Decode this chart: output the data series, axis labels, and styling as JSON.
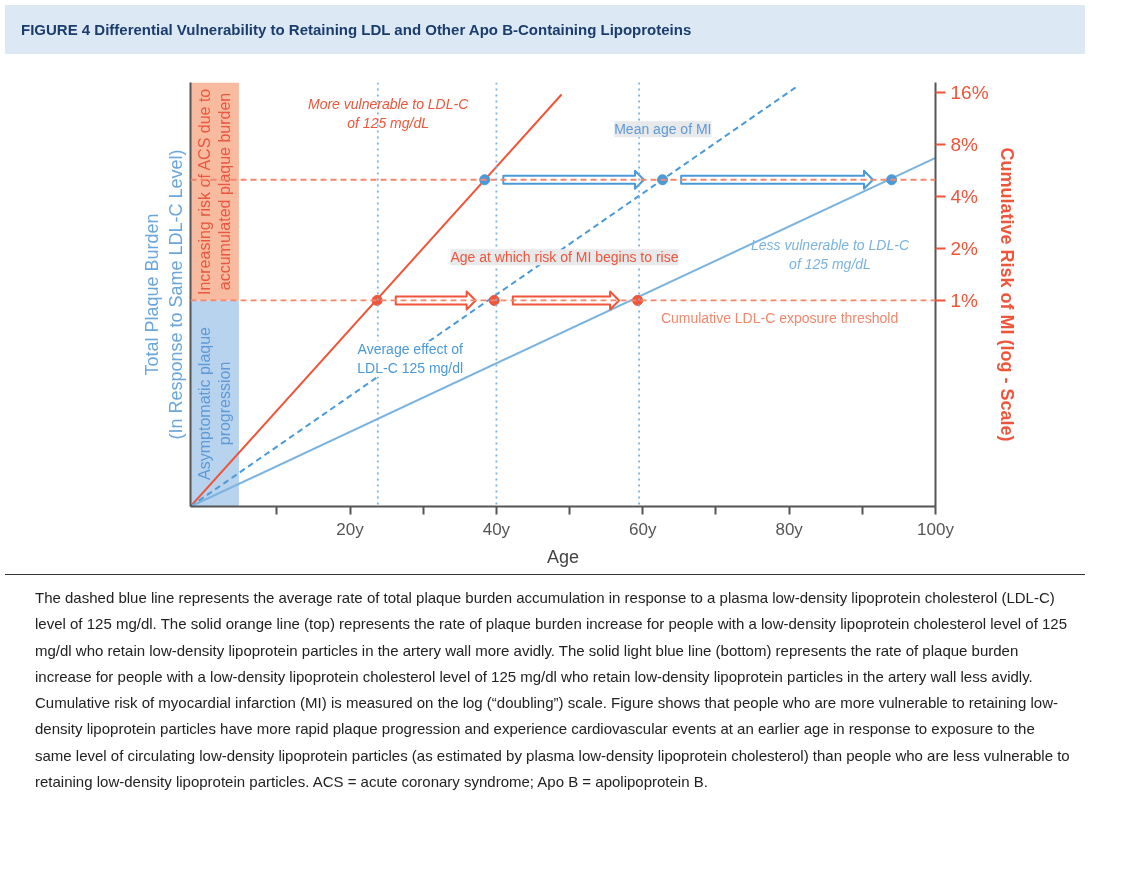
{
  "chart_data": {
    "type": "line",
    "title": "FIGURE 4 Differential Vulnerability to Retaining LDL and Other Apo B-Containing Lipoproteins",
    "xlabel": "Age",
    "ylabel": "Total Plaque Burden\n(In Response to Same LDL-C Level)",
    "y2label": "Cumulative Risk of MI (log - Scale)",
    "xlim": [
      -1.8,
      100
    ],
    "xticks": [
      {
        "value": 10,
        "label": null
      },
      {
        "value": 20,
        "label": "20y"
      },
      {
        "value": 30,
        "label": null
      },
      {
        "value": 40,
        "label": "40y"
      },
      {
        "value": 50,
        "label": null
      },
      {
        "value": 60,
        "label": "60y"
      },
      {
        "value": 70,
        "label": null
      },
      {
        "value": 80,
        "label": "80y"
      },
      {
        "value": 90,
        "label": null
      },
      {
        "value": 100,
        "label": "100y"
      }
    ],
    "y2lim": [
      0.064,
      18.3
    ],
    "y2ticks": [
      {
        "value": 1,
        "label": "1%"
      },
      {
        "value": 2,
        "label": "2%"
      },
      {
        "value": 4,
        "label": "4%"
      },
      {
        "value": 8,
        "label": "8%"
      },
      {
        "value": 16,
        "label": "16%"
      }
    ],
    "log": "y2",
    "grid": false,
    "series": [
      {
        "name": "More vulnerable to LDL-C\nof 125 mg/dL",
        "axis": "y2",
        "color": "#ef553b",
        "line_style": "solid",
        "x": [
          -1.8,
          48.9
        ],
        "values": [
          0.064,
          15.6
        ]
      },
      {
        "name": "Average effect of\nLDL-C 125 mg/dl",
        "axis": "y2",
        "color": "#4a9ad8",
        "line_style": "dashed",
        "x": [
          -1.8,
          81.2
        ],
        "values": [
          0.064,
          17.5
        ]
      },
      {
        "name": "Less vulnerable to LDL-C\nof 125 mg/dL",
        "axis": "y2",
        "color": "#7ab3e0",
        "line_style": "solid",
        "x": [
          -1.8,
          100
        ],
        "values": [
          0.064,
          6.7
        ]
      },
      {
        "type": "scatter",
        "axis": "y2",
        "color": "#ef553b",
        "marker": "circle",
        "x": [
          23.7,
          39.7,
          59.3
        ],
        "values": [
          1,
          1,
          1
        ]
      },
      {
        "type": "scatter",
        "axis": "y2",
        "color": "#4a9ad8",
        "marker": "circle",
        "x": [
          38.4,
          62.7,
          94.0
        ],
        "values": [
          5,
          5,
          5
        ]
      }
    ],
    "ref_lines": [
      {
        "axis": "y2",
        "value": 1,
        "label": "Cumulative LDL-C exposure threshold",
        "color": "#f4876c",
        "line_style": "dashed"
      },
      {
        "axis": "y2",
        "value": 5,
        "color": "#f4876c",
        "line_style": "dashed"
      },
      {
        "axis": "x",
        "value": 23.8,
        "color": "#7ab3e0",
        "line_style": "dotted"
      },
      {
        "axis": "x",
        "value": 40,
        "color": "#7ab3e0",
        "line_style": "dotted"
      },
      {
        "axis": "x",
        "value": 59.5,
        "color": "#7ab3e0",
        "line_style": "dotted"
      }
    ],
    "bands": [
      {
        "axis": "y2",
        "from": 1,
        "to": 18.3,
        "label": "Increasing risk of ACS due to\naccumulated plaque burden",
        "color": "#f9bba0"
      },
      {
        "axis": "y2",
        "from": 0.064,
        "to": 1,
        "label": "Asymptomatic plaque\nprogression",
        "color": "#b8d3ee"
      }
    ],
    "annotations": [
      "Mean age of MI",
      "Age at which risk of MI begins to rise",
      "The dashed blue line represents the average rate of total plaque burden accumulation in response to a plasma low-density lipoprotein cholesterol (LDL-C) level of 125 mg/dl. The solid orange line (top) represents the rate of plaque burden increase for people with a low-density lipoprotein cholesterol level of 125 mg/dl who retain low-density lipoprotein particles in the artery wall more avidly. The solid light blue line (bottom) represents the rate of plaque burden increase for people with a low-density lipoprotein cholesterol level of 125 mg/dl who retain low-density lipoprotein particles in the artery wall less avidly. Cumulative risk of myocardial infarction (MI) is measured on the log (“doubling”) scale. Figure shows that people who are more vulnerable to retaining low-density lipoprotein particles have more rapid plaque progression and experience cardiovascular events at an earlier age in response to exposure to the same level of circulating low-density lipoprotein particles (as estimated by plasma low-density lipoprotein cholesterol) than people who are less vulnerable to retaining low-density lipoprotein particles. ACS = acute coronary syndrome; Apo B = apolipoprotein B."
    ]
  }
}
